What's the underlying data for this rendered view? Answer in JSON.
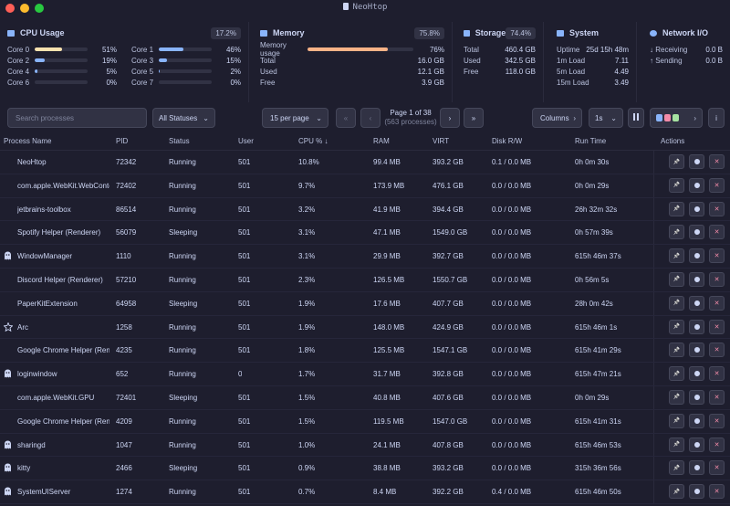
{
  "window": {
    "title": "NeoHtop"
  },
  "cpu": {
    "title": "CPU Usage",
    "badge": "17.2%",
    "cores": [
      {
        "label": "Core 0",
        "value": "51%",
        "pct": 51
      },
      {
        "label": "Core 1",
        "value": "46%",
        "pct": 46
      },
      {
        "label": "Core 2",
        "value": "19%",
        "pct": 19
      },
      {
        "label": "Core 3",
        "value": "15%",
        "pct": 15
      },
      {
        "label": "Core 4",
        "value": "5%",
        "pct": 5
      },
      {
        "label": "Core 5",
        "value": "2%",
        "pct": 2
      },
      {
        "label": "Core 6",
        "value": "0%",
        "pct": 0
      },
      {
        "label": "Core 7",
        "value": "0%",
        "pct": 0
      }
    ]
  },
  "memory": {
    "title": "Memory",
    "badge": "75.8%",
    "usage_label": "Memory usage",
    "usage_value": "76%",
    "usage_pct": 76,
    "rows": [
      {
        "label": "Total",
        "value": "16.0 GB"
      },
      {
        "label": "Used",
        "value": "12.1 GB"
      },
      {
        "label": "Free",
        "value": "3.9 GB"
      }
    ]
  },
  "storage": {
    "title": "Storage",
    "badge": "74.4%",
    "rows": [
      {
        "label": "Total",
        "value": "460.4 GB"
      },
      {
        "label": "Used",
        "value": "342.5 GB"
      },
      {
        "label": "Free",
        "value": "118.0 GB"
      }
    ]
  },
  "system": {
    "title": "System",
    "rows": [
      {
        "label": "Uptime",
        "value": "25d 15h 48m"
      },
      {
        "label": "1m Load",
        "value": "7.11"
      },
      {
        "label": "5m Load",
        "value": "4.49"
      },
      {
        "label": "15m Load",
        "value": "3.49"
      }
    ]
  },
  "network": {
    "title": "Network I/O",
    "rows": [
      {
        "label": "↓ Receiving",
        "value": "0.0 B"
      },
      {
        "label": "↑ Sending",
        "value": "0.0 B"
      }
    ]
  },
  "toolbar": {
    "search_placeholder": "Search processes",
    "status_filter": "All Statuses",
    "per_page": "15 per page",
    "first": "«",
    "prev": "‹",
    "next": "›",
    "last": "»",
    "page_label": "Page 1 of 38",
    "page_sub": "(563 processes)",
    "columns": "Columns",
    "interval": "1s",
    "theme_colors": [
      "#89b4fa",
      "#f38ba8",
      "#a6e3a1"
    ]
  },
  "table": {
    "headers": {
      "name": "Process Name",
      "pid": "PID",
      "status": "Status",
      "user": "User",
      "cpu": "CPU %",
      "ram": "RAM",
      "virt": "VIRT",
      "disk": "Disk R/W",
      "runtime": "Run Time",
      "actions": "Actions"
    },
    "rows": [
      {
        "name": "NeoHtop",
        "pid": "72342",
        "status": "Running",
        "user": "501",
        "cpu": "10.8%",
        "ram": "99.4 MB",
        "virt": "393.2 GB",
        "disk": "0.1 / 0.0 MB",
        "runtime": "0h 0m 30s",
        "icon": ""
      },
      {
        "name": "com.apple.WebKit.WebContent",
        "pid": "72402",
        "status": "Running",
        "user": "501",
        "cpu": "9.7%",
        "ram": "173.9 MB",
        "virt": "476.1 GB",
        "disk": "0.0 / 0.0 MB",
        "runtime": "0h 0m 29s",
        "icon": ""
      },
      {
        "name": "jetbrains-toolbox",
        "pid": "86514",
        "status": "Running",
        "user": "501",
        "cpu": "3.2%",
        "ram": "41.9 MB",
        "virt": "394.4 GB",
        "disk": "0.0 / 0.0 MB",
        "runtime": "26h 32m 32s",
        "icon": ""
      },
      {
        "name": "Spotify Helper (Renderer)",
        "pid": "56079",
        "status": "Sleeping",
        "user": "501",
        "cpu": "3.1%",
        "ram": "47.1 MB",
        "virt": "1549.0 GB",
        "disk": "0.0 / 0.0 MB",
        "runtime": "0h 57m 39s",
        "icon": ""
      },
      {
        "name": "WindowManager",
        "pid": "1110",
        "status": "Running",
        "user": "501",
        "cpu": "3.1%",
        "ram": "29.9 MB",
        "virt": "392.7 GB",
        "disk": "0.0 / 0.0 MB",
        "runtime": "615h 46m 37s",
        "icon": "ghost-icon"
      },
      {
        "name": "Discord Helper (Renderer)",
        "pid": "57210",
        "status": "Running",
        "user": "501",
        "cpu": "2.3%",
        "ram": "126.5 MB",
        "virt": "1550.7 GB",
        "disk": "0.0 / 0.0 MB",
        "runtime": "0h 56m 5s",
        "icon": ""
      },
      {
        "name": "PaperKitExtension",
        "pid": "64958",
        "status": "Sleeping",
        "user": "501",
        "cpu": "1.9%",
        "ram": "17.6 MB",
        "virt": "407.7 GB",
        "disk": "0.0 / 0.0 MB",
        "runtime": "28h 0m 42s",
        "icon": ""
      },
      {
        "name": "Arc",
        "pid": "1258",
        "status": "Running",
        "user": "501",
        "cpu": "1.9%",
        "ram": "148.0 MB",
        "virt": "424.9 GB",
        "disk": "0.0 / 0.0 MB",
        "runtime": "615h 46m 1s",
        "icon": "arc-icon"
      },
      {
        "name": "Google Chrome Helper (Renderer)",
        "pid": "4235",
        "status": "Running",
        "user": "501",
        "cpu": "1.8%",
        "ram": "125.5 MB",
        "virt": "1547.1 GB",
        "disk": "0.0 / 0.0 MB",
        "runtime": "615h 41m 29s",
        "icon": ""
      },
      {
        "name": "loginwindow",
        "pid": "652",
        "status": "Running",
        "user": "0",
        "cpu": "1.7%",
        "ram": "31.7 MB",
        "virt": "392.8 GB",
        "disk": "0.0 / 0.0 MB",
        "runtime": "615h 47m 21s",
        "icon": "ghost-icon"
      },
      {
        "name": "com.apple.WebKit.GPU",
        "pid": "72401",
        "status": "Sleeping",
        "user": "501",
        "cpu": "1.5%",
        "ram": "40.8 MB",
        "virt": "407.6 GB",
        "disk": "0.0 / 0.0 MB",
        "runtime": "0h 0m 29s",
        "icon": ""
      },
      {
        "name": "Google Chrome Helper (Renderer)",
        "pid": "4209",
        "status": "Running",
        "user": "501",
        "cpu": "1.5%",
        "ram": "119.5 MB",
        "virt": "1547.0 GB",
        "disk": "0.0 / 0.0 MB",
        "runtime": "615h 41m 31s",
        "icon": ""
      },
      {
        "name": "sharingd",
        "pid": "1047",
        "status": "Running",
        "user": "501",
        "cpu": "1.0%",
        "ram": "24.1 MB",
        "virt": "407.8 GB",
        "disk": "0.0 / 0.0 MB",
        "runtime": "615h 46m 53s",
        "icon": "ghost-icon"
      },
      {
        "name": "kitty",
        "pid": "2466",
        "status": "Sleeping",
        "user": "501",
        "cpu": "0.9%",
        "ram": "38.8 MB",
        "virt": "393.2 GB",
        "disk": "0.0 / 0.0 MB",
        "runtime": "315h 36m 56s",
        "icon": "ghost-icon"
      },
      {
        "name": "SystemUIServer",
        "pid": "1274",
        "status": "Running",
        "user": "501",
        "cpu": "0.7%",
        "ram": "8.4 MB",
        "virt": "392.2 GB",
        "disk": "0.4 / 0.0 MB",
        "runtime": "615h 46m 50s",
        "icon": "ghost-icon"
      }
    ]
  },
  "colors": {
    "accent": "#89b4fa",
    "cpu_bar_high": "#f9e2af",
    "memory_bar": "#fab387",
    "kill": "#f38ba8"
  }
}
